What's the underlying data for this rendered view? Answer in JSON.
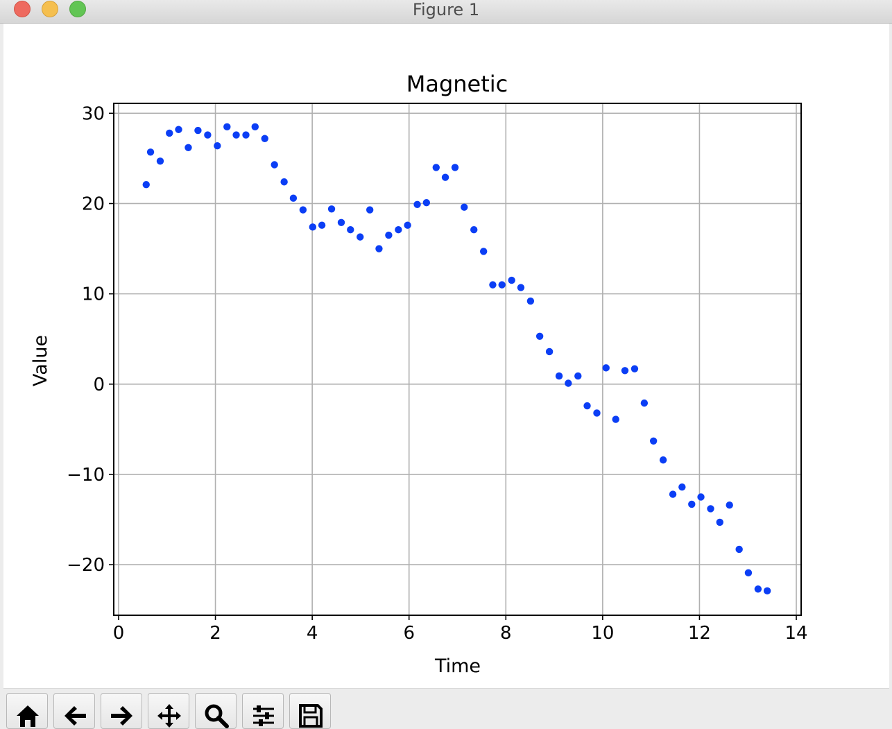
{
  "window": {
    "title": "Figure 1"
  },
  "toolbar": {
    "buttons": [
      {
        "icon": "home-icon"
      },
      {
        "icon": "back-arrow-icon"
      },
      {
        "icon": "forward-arrow-icon"
      },
      {
        "icon": "pan-icon"
      },
      {
        "icon": "zoom-icon"
      },
      {
        "icon": "configure-subplots-icon"
      },
      {
        "icon": "save-icon"
      }
    ]
  },
  "chart_data": {
    "type": "scatter",
    "title": "Magnetic",
    "xlabel": "Time",
    "ylabel": "Value",
    "xlim": [
      -0.1,
      14.1
    ],
    "ylim": [
      -25.6,
      31.1
    ],
    "xticks": [
      0,
      2,
      4,
      6,
      8,
      10,
      12,
      14
    ],
    "yticks": [
      -20,
      -10,
      0,
      10,
      20,
      30
    ],
    "xtick_labels": [
      "0",
      "2",
      "4",
      "6",
      "8",
      "10",
      "12",
      "14"
    ],
    "ytick_labels": [
      "−20",
      "−10",
      "0",
      "10",
      "20",
      "30"
    ],
    "grid": true,
    "marker_color": "#0b3ef5",
    "series": [
      {
        "x": [
          0.57,
          0.66,
          0.86,
          1.05,
          1.24,
          1.44,
          1.64,
          1.84,
          2.04,
          2.24,
          2.43,
          2.63,
          2.82,
          3.02,
          3.22,
          3.42,
          3.61,
          3.81,
          4.01,
          4.2,
          4.4,
          4.6,
          4.79,
          4.99,
          5.19,
          5.38,
          5.58,
          5.78,
          5.97,
          6.17,
          6.36,
          6.56,
          6.75,
          6.95,
          7.14,
          7.34,
          7.54,
          7.73,
          7.92,
          8.12,
          8.31,
          8.51,
          8.7,
          8.9,
          9.1,
          9.29,
          9.49,
          9.68,
          9.88,
          10.07,
          10.27,
          10.46,
          10.66,
          10.86,
          11.05,
          11.25,
          11.45,
          11.64,
          11.84,
          12.03,
          12.23,
          12.42,
          12.62,
          12.82,
          13.01,
          13.21,
          13.4
        ],
        "y": [
          22.1,
          25.7,
          24.7,
          27.8,
          28.2,
          26.2,
          28.1,
          27.6,
          26.4,
          28.5,
          27.6,
          27.6,
          28.5,
          27.2,
          24.3,
          22.4,
          20.6,
          19.3,
          17.4,
          17.6,
          19.4,
          17.9,
          17.1,
          16.3,
          19.3,
          15.0,
          16.5,
          17.1,
          17.6,
          19.9,
          20.1,
          24.0,
          22.9,
          24.0,
          19.6,
          17.1,
          14.7,
          11.0,
          11.0,
          11.5,
          10.7,
          9.2,
          5.3,
          3.6,
          0.9,
          0.1,
          0.9,
          -2.4,
          -3.2,
          1.8,
          -3.9,
          1.5,
          1.7,
          -2.1,
          -6.3,
          -8.4,
          -12.2,
          -11.4,
          -13.3,
          -12.5,
          -13.8,
          -15.3,
          -13.4,
          -18.3,
          -20.9,
          -22.7,
          -22.9
        ]
      }
    ]
  }
}
